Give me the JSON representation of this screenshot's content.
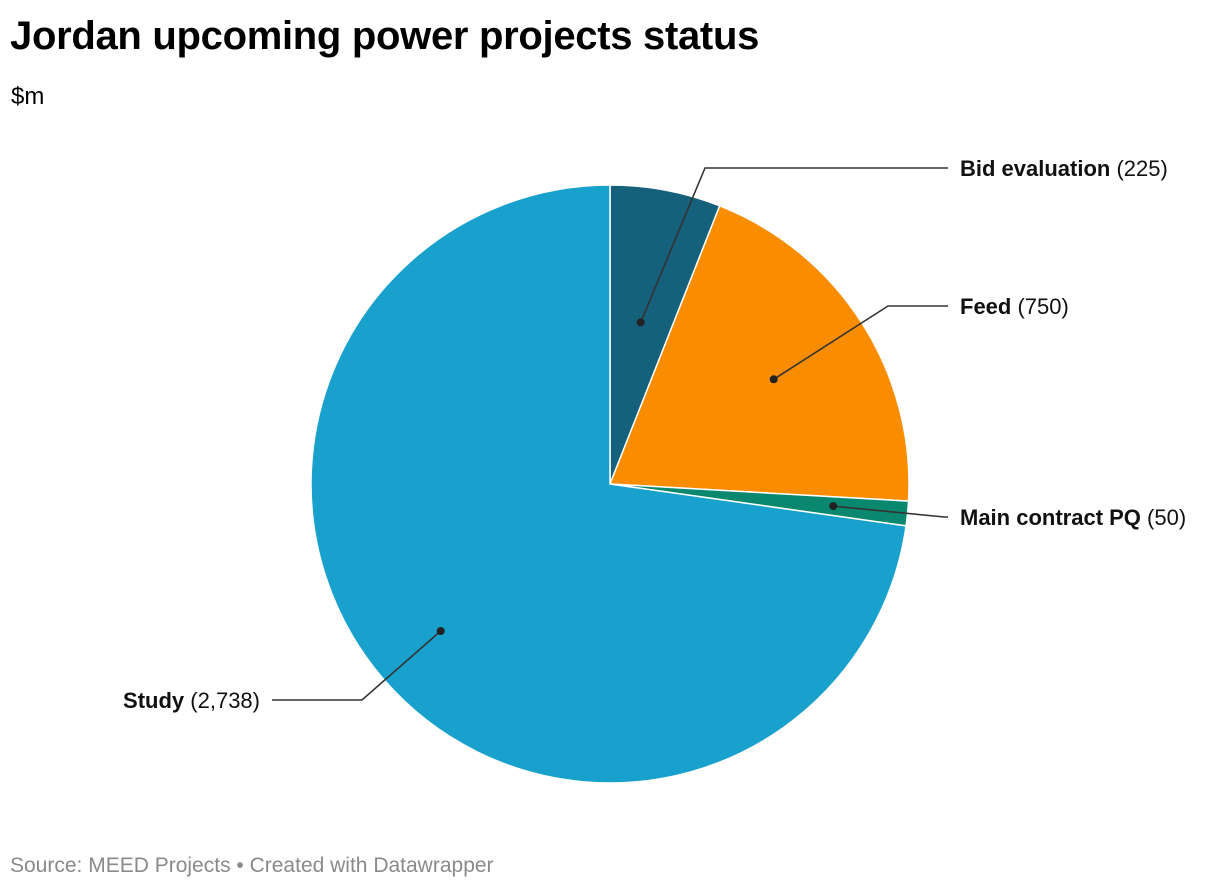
{
  "header": {
    "title": "Jordan upcoming power projects status",
    "subtitle": "$m"
  },
  "footer": {
    "source_label": "Source: MEED Projects • Created with Datawrapper"
  },
  "chart_data": {
    "type": "pie",
    "title": "Jordan upcoming power projects status",
    "subtitle": "$m",
    "unit": "$m",
    "slices": [
      {
        "name": "Bid evaluation",
        "value": 225,
        "value_label": "(225)",
        "color": "#15607a"
      },
      {
        "name": "Feed",
        "value": 750,
        "value_label": "(750)",
        "color": "#fa8c00"
      },
      {
        "name": "Main contract PQ",
        "value": 50,
        "value_label": "(50)",
        "color": "#09876f"
      },
      {
        "name": "Study",
        "value": 2738,
        "value_label": "(2,738)",
        "color": "#18a1cd"
      }
    ],
    "start_angle_deg": 0,
    "direction": "clockwise",
    "slice_border_color": "#ffffff",
    "leader_color": "#333333"
  }
}
